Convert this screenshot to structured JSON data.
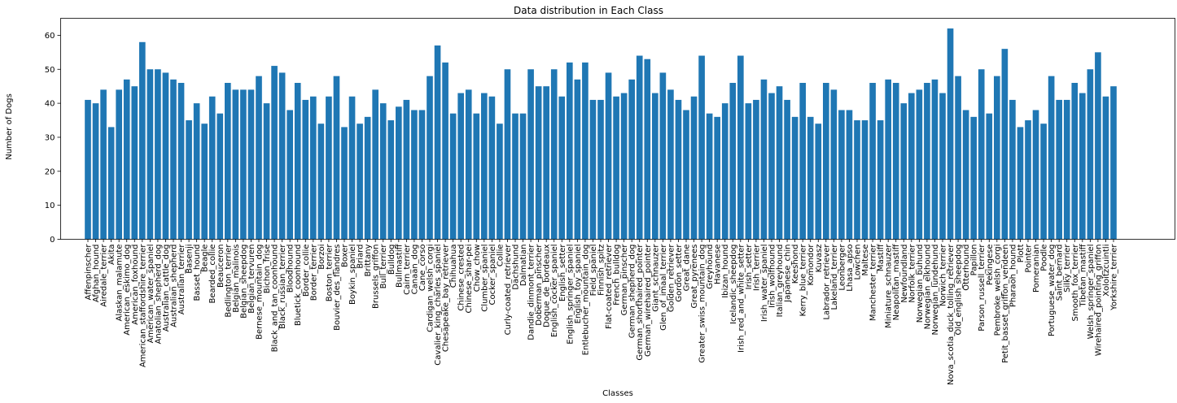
{
  "chart_data": {
    "type": "bar",
    "title": "Data distribution in Each Class",
    "xlabel": "Classes",
    "ylabel": "Number of Dogs",
    "ylim": [
      0,
      65
    ],
    "yticks": [
      0,
      10,
      20,
      30,
      40,
      50,
      60
    ],
    "grid": false,
    "bar_color": "#1f77b4",
    "categories": [
      "Affenpinscher",
      "Afghan_hound",
      "Airedale_terrier",
      "Akita",
      "Alaskan_malamute",
      "American_eskimo_dog",
      "American_foxhound",
      "American_staffordshire_terrier",
      "American_water_spaniel",
      "Anatolian_shepherd_dog",
      "Australian_cattle_dog",
      "Australian_shepherd",
      "Australian_terrier",
      "Basenji",
      "Basset_hound",
      "Beagle",
      "Bearded_collie",
      "Beauceron",
      "Bedlington_terrier",
      "Belgian_malinois",
      "Belgian_sheepdog",
      "Belgian_tervuren",
      "Bernese_mountain_dog",
      "Bichon_frise",
      "Black_and_tan_coonhound",
      "Black_russian_terrier",
      "Bloodhound",
      "Bluetick_coonhound",
      "Border_collie",
      "Border_terrier",
      "Borzoi",
      "Boston_terrier",
      "Bouvier_des_flandres",
      "Boxer",
      "Boykin_spaniel",
      "Briard",
      "Brittany",
      "Brussels_griffon",
      "Bull_terrier",
      "Bulldog",
      "Bullmastiff",
      "Cairn_terrier",
      "Canaan_dog",
      "Cane_corso",
      "Cardigan_welsh_corgi",
      "Cavalier_king_charles_spaniel",
      "Chesapeake_bay_retriever",
      "Chihuahua",
      "Chinese_crested",
      "Chinese_shar-pei",
      "Chow_chow",
      "Clumber_spaniel",
      "Cocker_spaniel",
      "Collie",
      "Curly-coated_retriever",
      "Dachshund",
      "Dalmatian",
      "Dandie_dinmont_terrier",
      "Doberman_pinscher",
      "Dogue_de_bordeaux",
      "English_cocker_spaniel",
      "English_setter",
      "English_springer_spaniel",
      "English_toy_spaniel",
      "Entlebucher_mountain_dog",
      "Field_spaniel",
      "Finnish_spitz",
      "Flat-coated_retriever",
      "French_bulldog",
      "German_pinscher",
      "German_shepherd_dog",
      "German_shorthaired_pointer",
      "German_wirehaired_pointer",
      "Giant_schnauzer",
      "Glen_of_imaal_terrier",
      "Golden_retriever",
      "Gordon_setter",
      "Great_dane",
      "Great_pyrenees",
      "Greater_swiss_mountain_dog",
      "Greyhound",
      "Havanese",
      "Ibizan_hound",
      "Icelandic_sheepdog",
      "Irish_red_and_white_setter",
      "Irish_setter",
      "Irish_terrier",
      "Irish_water_spaniel",
      "Irish_wolfhound",
      "Italian_greyhound",
      "Japanese_chin",
      "Keeshond",
      "Kerry_blue_terrier",
      "Komondor",
      "Kuvasz",
      "Labrador_retriever",
      "Lakeland_terrier",
      "Leonberger",
      "Lhasa_apso",
      "Lowchen",
      "Maltese",
      "Manchester_terrier",
      "Mastiff",
      "Miniature_schnauzer",
      "Neapolitan_mastiff",
      "Newfoundland",
      "Norfolk_terrier",
      "Norwegian_buhund",
      "Norwegian_elkhound",
      "Norwegian_lundehund",
      "Norwich_terrier",
      "Nova_scotia_duck_tolling_retriever",
      "Old_english_sheepdog",
      "Otterhound",
      "Papillon",
      "Parson_russell_terrier",
      "Pekingese",
      "Pembroke_welsh_corgi",
      "Petit_basset_griffon_vendeen",
      "Pharaoh_hound",
      "Plott",
      "Pointer",
      "Pomeranian",
      "Poodle",
      "Portuguese_water_dog",
      "Saint_bernard",
      "Silky_terrier",
      "Smooth_fox_terrier",
      "Tibetan_mastiff",
      "Welsh_springer_spaniel",
      "Wirehaired_pointing_griffon",
      "Xoloitzcuintli",
      "Yorkshire_terrier"
    ],
    "values": [
      41,
      40,
      44,
      33,
      44,
      47,
      45,
      58,
      50,
      50,
      49,
      47,
      46,
      35,
      40,
      34,
      42,
      37,
      46,
      44,
      44,
      44,
      48,
      40,
      51,
      49,
      38,
      46,
      41,
      42,
      34,
      42,
      48,
      33,
      42,
      34,
      36,
      44,
      40,
      35,
      39,
      41,
      38,
      38,
      48,
      57,
      52,
      37,
      43,
      44,
      37,
      43,
      42,
      34,
      50,
      37,
      37,
      50,
      45,
      45,
      50,
      42,
      52,
      47,
      52,
      41,
      41,
      49,
      42,
      43,
      47,
      54,
      53,
      43,
      49,
      44,
      41,
      38,
      42,
      54,
      37,
      36,
      40,
      46,
      54,
      40,
      41,
      47,
      43,
      45,
      41,
      36,
      46,
      36,
      34,
      46,
      44,
      38,
      38,
      35,
      35,
      46,
      35,
      47,
      46,
      40,
      43,
      44,
      46,
      47,
      43,
      62,
      48,
      38,
      36,
      50,
      37,
      48,
      56,
      41,
      33,
      35,
      38,
      34,
      48,
      41,
      41,
      46,
      43,
      50,
      55,
      42,
      45
    ]
  }
}
